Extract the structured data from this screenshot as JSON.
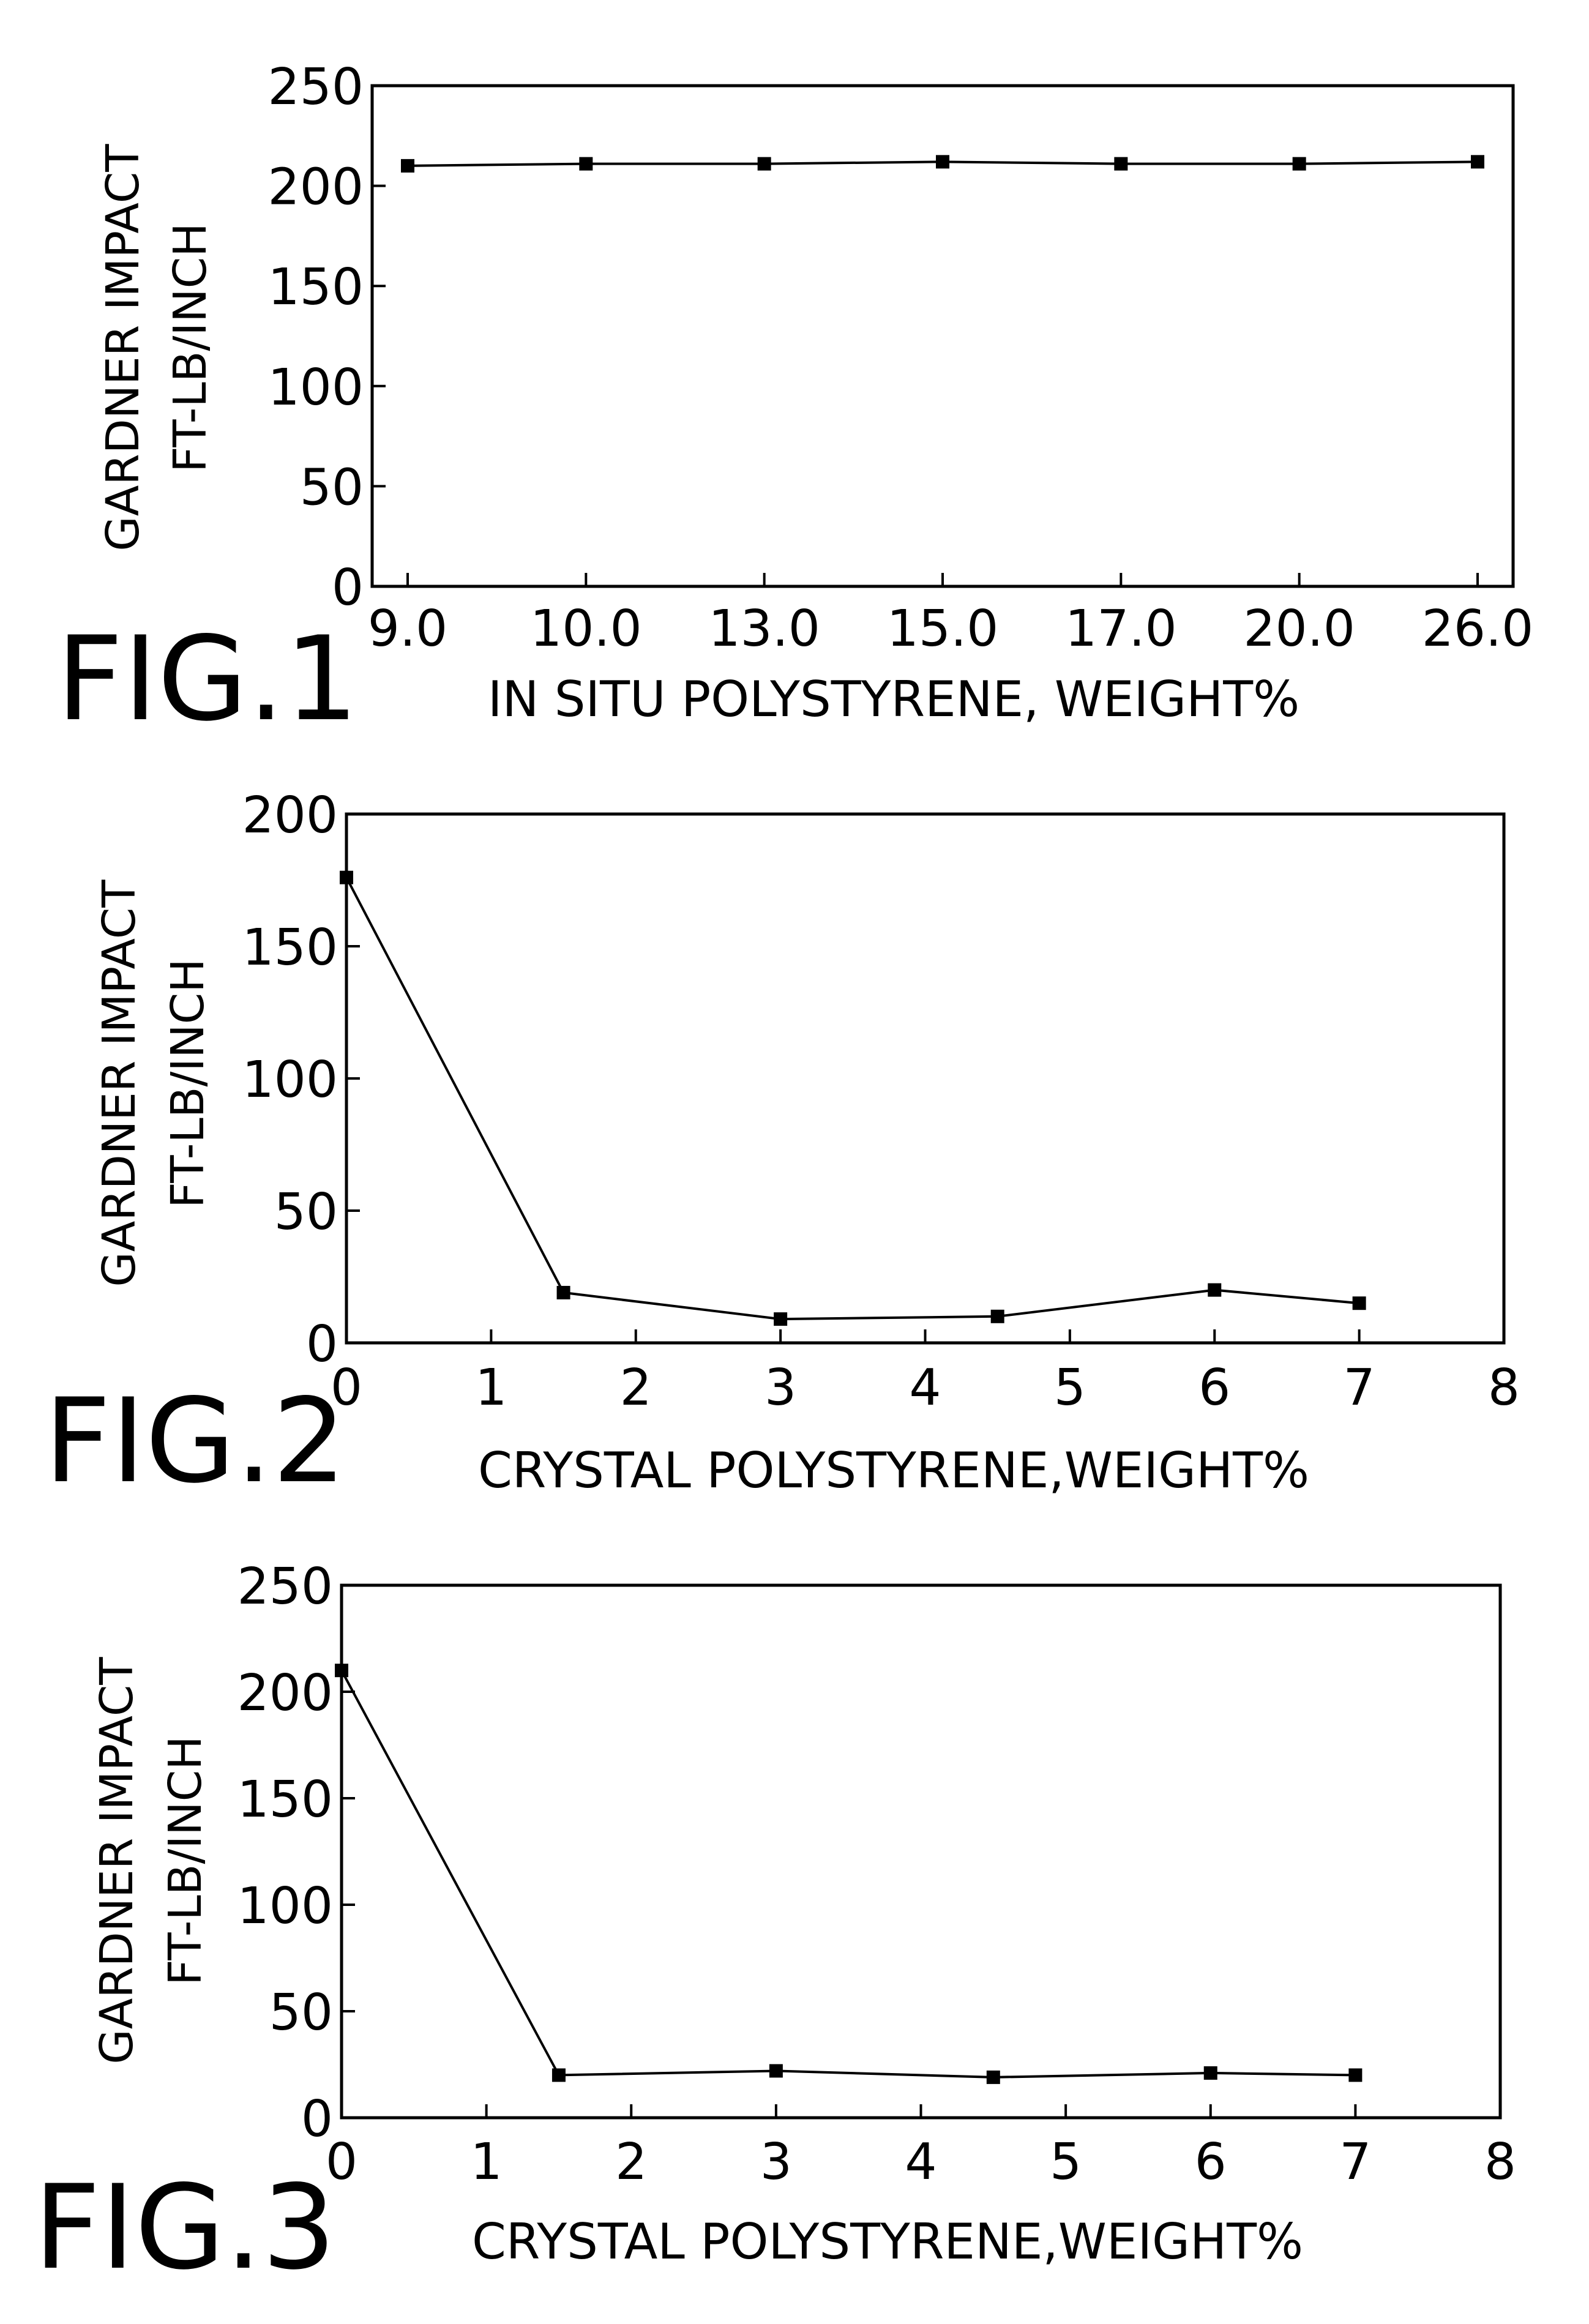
{
  "colors": {
    "ink": "#000000",
    "paper": "#ffffff"
  },
  "chart_data": [
    {
      "type": "line",
      "figure_label": "FIG.1",
      "xlabel": "IN SITU POLYSTYRENE, WEIGHT%",
      "ylabel": [
        "GARDNER IMPACT",
        "FT-LB/INCH"
      ],
      "categories": [
        "9.0",
        "10.0",
        "13.0",
        "15.0",
        "17.0",
        "20.0",
        "26.0"
      ],
      "ylim": [
        0,
        250
      ],
      "yticks": [
        0,
        50,
        100,
        150,
        200,
        250
      ],
      "series": [
        {
          "values": [
            210,
            211,
            211,
            212,
            211,
            211,
            212
          ]
        }
      ],
      "grid": false,
      "legend": "none"
    },
    {
      "type": "line",
      "figure_label": "FIG.2",
      "xlabel": "CRYSTAL POLYSTYRENE,WEIGHT%",
      "ylabel": [
        "GARDNER IMPACT",
        "FT-LB/INCH"
      ],
      "xlim": [
        0,
        8
      ],
      "xticks": [
        0,
        1,
        2,
        3,
        4,
        5,
        6,
        7,
        8
      ],
      "ylim": [
        0,
        200
      ],
      "yticks": [
        0,
        50,
        100,
        150,
        200
      ],
      "series": [
        {
          "x": [
            0,
            1.5,
            3,
            4.5,
            6,
            7
          ],
          "y": [
            176,
            19,
            9,
            10,
            20,
            15
          ]
        }
      ],
      "grid": false,
      "legend": "none"
    },
    {
      "type": "line",
      "figure_label": "FIG.3",
      "xlabel": "CRYSTAL POLYSTYRENE,WEIGHT%",
      "ylabel": [
        "GARDNER IMPACT",
        "FT-LB/INCH"
      ],
      "xlim": [
        0,
        8
      ],
      "xticks": [
        0,
        1,
        2,
        3,
        4,
        5,
        6,
        7,
        8
      ],
      "ylim": [
        0,
        250
      ],
      "yticks": [
        0,
        50,
        100,
        150,
        200,
        250
      ],
      "series": [
        {
          "x": [
            0,
            1.5,
            3,
            4.5,
            6,
            7
          ],
          "y": [
            210,
            20,
            22,
            19,
            21,
            20
          ]
        }
      ],
      "grid": false,
      "legend": "none"
    }
  ]
}
